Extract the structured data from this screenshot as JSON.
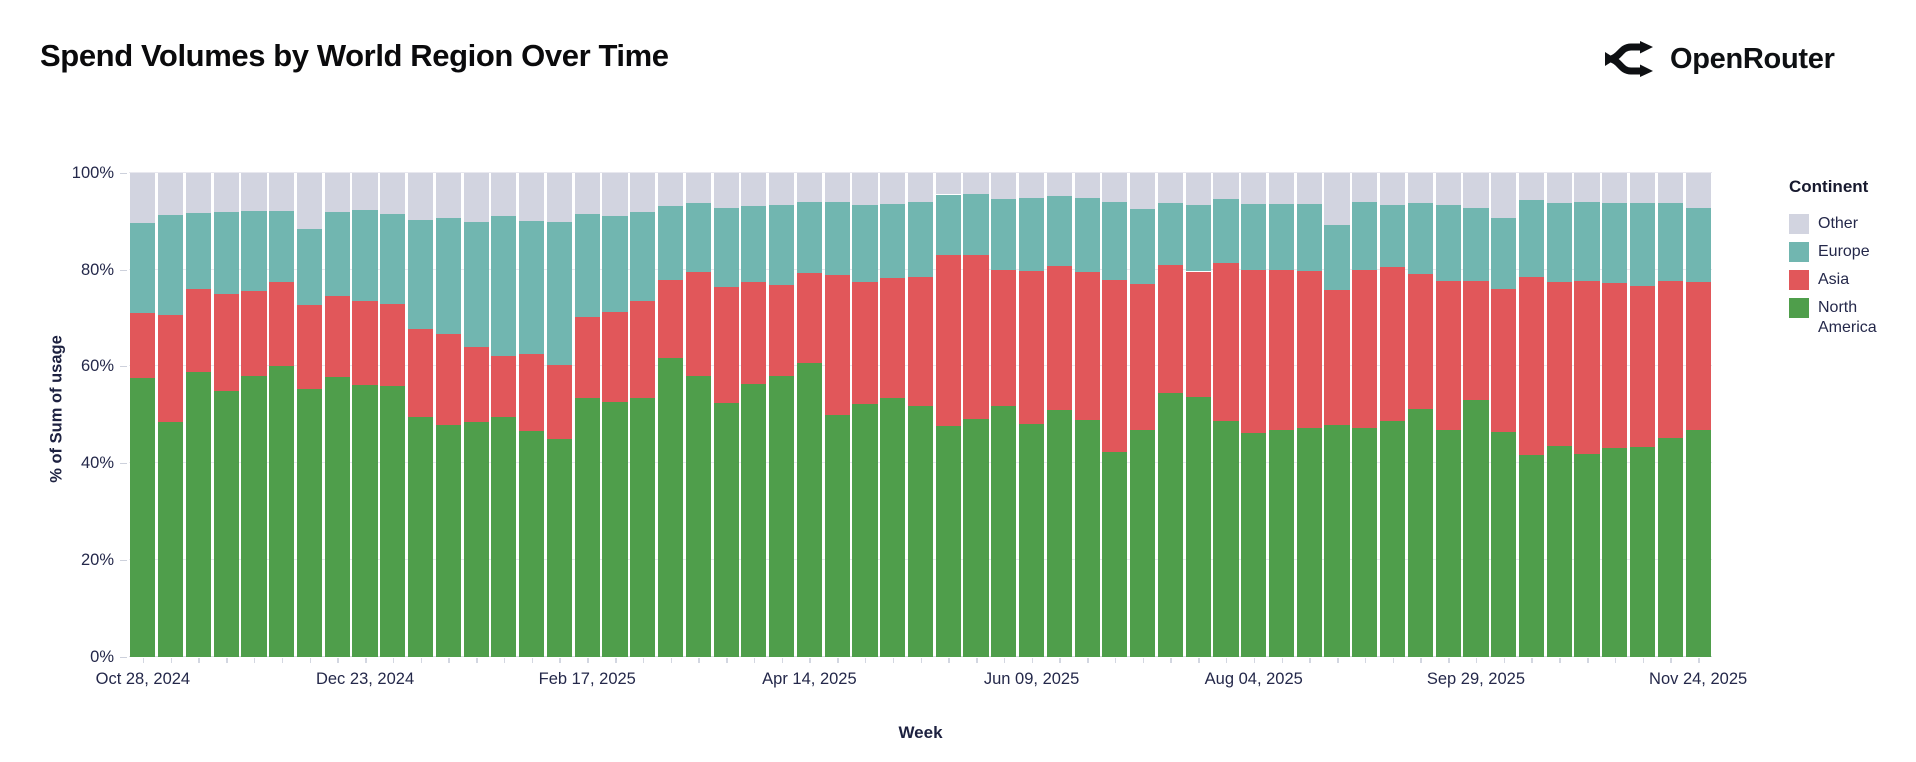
{
  "header": {
    "title": "Spend Volumes by World Region Over Time",
    "brand": "OpenRouter"
  },
  "chart_data": {
    "type": "bar",
    "subtype": "100pct-stacked-weekly",
    "title": "Spend Volumes by World Region Over Time",
    "xlabel": "Week",
    "ylabel": "% of Sum of usage",
    "ylim": [
      0,
      100
    ],
    "grid": "horizontal",
    "legend_position": "right",
    "legend_title": "Continent",
    "y_ticks": [
      {
        "value": 0,
        "label": "0%"
      },
      {
        "value": 20,
        "label": "20%"
      },
      {
        "value": 40,
        "label": "40%"
      },
      {
        "value": 60,
        "label": "60%"
      },
      {
        "value": 80,
        "label": "80%"
      },
      {
        "value": 100,
        "label": "100%"
      }
    ],
    "x_tick_every": 8,
    "x_tick_labels": [
      "Oct 28, 2024",
      "Dec 23, 2024",
      "Feb 17, 2025",
      "Apr 14, 2025",
      "Jun 09, 2025",
      "Aug 04, 2025",
      "Sep 29, 2025",
      "Nov 24, 2025"
    ],
    "series": [
      {
        "key": "north_america",
        "name": "North America",
        "color": "#4F9E4B"
      },
      {
        "key": "asia",
        "name": "Asia",
        "color": "#E1575A"
      },
      {
        "key": "europe",
        "name": "Europe",
        "color": "#71B6B0"
      },
      {
        "key": "other",
        "name": "Other",
        "color": "#D2D4E0"
      }
    ],
    "weeks": [
      {
        "week": "Oct 28, 2024",
        "north_america": 57.7,
        "asia": 13.3,
        "europe": 18.7,
        "other": 10.3
      },
      {
        "week": "Nov 04, 2024",
        "north_america": 48.6,
        "asia": 22.1,
        "europe": 20.5,
        "other": 8.8
      },
      {
        "week": "Nov 11, 2024",
        "north_america": 58.8,
        "asia": 17.2,
        "europe": 15.7,
        "other": 8.3
      },
      {
        "week": "Nov 18, 2024",
        "north_america": 55.0,
        "asia": 20.0,
        "europe": 16.9,
        "other": 8.1
      },
      {
        "week": "Nov 25, 2024",
        "north_america": 58.0,
        "asia": 17.6,
        "europe": 16.4,
        "other": 8.0
      },
      {
        "week": "Dec 02, 2024",
        "north_america": 60.0,
        "asia": 17.4,
        "europe": 14.7,
        "other": 7.9
      },
      {
        "week": "Dec 09, 2024",
        "north_america": 55.3,
        "asia": 17.3,
        "europe": 15.8,
        "other": 11.6
      },
      {
        "week": "Dec 16, 2024",
        "north_america": 57.9,
        "asia": 16.6,
        "europe": 17.4,
        "other": 8.1
      },
      {
        "week": "Dec 23, 2024",
        "north_america": 56.2,
        "asia": 17.4,
        "europe": 18.7,
        "other": 7.7
      },
      {
        "week": "Dec 30, 2024",
        "north_america": 56.0,
        "asia": 16.8,
        "europe": 18.6,
        "other": 8.6
      },
      {
        "week": "Jan 06, 2025",
        "north_america": 49.6,
        "asia": 18.1,
        "europe": 22.5,
        "other": 9.8
      },
      {
        "week": "Jan 13, 2025",
        "north_america": 47.8,
        "asia": 18.8,
        "europe": 24.1,
        "other": 9.3
      },
      {
        "week": "Jan 20, 2025",
        "north_america": 48.6,
        "asia": 15.4,
        "europe": 25.9,
        "other": 10.1
      },
      {
        "week": "Jan 27, 2025",
        "north_america": 49.5,
        "asia": 12.6,
        "europe": 29.0,
        "other": 8.9
      },
      {
        "week": "Feb 03, 2025",
        "north_america": 46.7,
        "asia": 15.8,
        "europe": 27.5,
        "other": 10.0
      },
      {
        "week": "Feb 10, 2025",
        "north_america": 45.0,
        "asia": 15.2,
        "europe": 29.6,
        "other": 10.2
      },
      {
        "week": "Feb 17, 2025",
        "north_america": 53.5,
        "asia": 16.8,
        "europe": 21.2,
        "other": 8.5
      },
      {
        "week": "Feb 24, 2025",
        "north_america": 52.7,
        "asia": 18.6,
        "europe": 19.8,
        "other": 8.9
      },
      {
        "week": "Mar 03, 2025",
        "north_america": 53.4,
        "asia": 20.1,
        "europe": 18.4,
        "other": 8.1
      },
      {
        "week": "Mar 10, 2025",
        "north_america": 61.8,
        "asia": 16.0,
        "europe": 15.4,
        "other": 6.8
      },
      {
        "week": "Mar 17, 2025",
        "north_america": 58.0,
        "asia": 21.4,
        "europe": 14.4,
        "other": 6.2
      },
      {
        "week": "Mar 24, 2025",
        "north_america": 52.5,
        "asia": 24.0,
        "europe": 16.3,
        "other": 7.2
      },
      {
        "week": "Mar 31, 2025",
        "north_america": 56.4,
        "asia": 21.0,
        "europe": 15.7,
        "other": 6.9
      },
      {
        "week": "Apr 07, 2025",
        "north_america": 58.0,
        "asia": 18.8,
        "europe": 16.5,
        "other": 6.7
      },
      {
        "week": "Apr 14, 2025",
        "north_america": 60.8,
        "asia": 18.4,
        "europe": 14.8,
        "other": 6.0
      },
      {
        "week": "Apr 21, 2025",
        "north_america": 49.9,
        "asia": 29.0,
        "europe": 15.0,
        "other": 6.1
      },
      {
        "week": "Apr 28, 2025",
        "north_america": 52.2,
        "asia": 25.2,
        "europe": 15.9,
        "other": 6.7
      },
      {
        "week": "May 05, 2025",
        "north_america": 53.4,
        "asia": 24.9,
        "europe": 15.2,
        "other": 6.5
      },
      {
        "week": "May 12, 2025",
        "north_america": 51.9,
        "asia": 26.6,
        "europe": 15.5,
        "other": 6.0
      },
      {
        "week": "May 19, 2025",
        "north_america": 47.6,
        "asia": 35.5,
        "europe": 12.4,
        "other": 4.5
      },
      {
        "week": "May 26, 2025",
        "north_america": 49.1,
        "asia": 33.9,
        "europe": 12.5,
        "other": 4.5
      },
      {
        "week": "Jun 02, 2025",
        "north_america": 51.9,
        "asia": 28.0,
        "europe": 14.6,
        "other": 5.5
      },
      {
        "week": "Jun 09, 2025",
        "north_america": 48.2,
        "asia": 31.6,
        "europe": 14.9,
        "other": 5.3
      },
      {
        "week": "Jun 16, 2025",
        "north_america": 51.1,
        "asia": 29.6,
        "europe": 14.4,
        "other": 4.9
      },
      {
        "week": "Jun 23, 2025",
        "north_america": 48.9,
        "asia": 30.5,
        "europe": 15.3,
        "other": 5.3
      },
      {
        "week": "Jun 30, 2025",
        "north_america": 42.3,
        "asia": 35.6,
        "europe": 16.0,
        "other": 6.1
      },
      {
        "week": "Jul 07, 2025",
        "north_america": 46.9,
        "asia": 30.1,
        "europe": 15.6,
        "other": 7.4
      },
      {
        "week": "Jul 14, 2025",
        "north_america": 54.5,
        "asia": 26.4,
        "europe": 12.8,
        "other": 6.3
      },
      {
        "week": "Jul 21, 2025",
        "north_america": 53.6,
        "asia": 26.0,
        "europe": 13.7,
        "other": 6.7
      },
      {
        "week": "Jul 28, 2025",
        "north_america": 48.7,
        "asia": 32.6,
        "europe": 13.3,
        "other": 5.4
      },
      {
        "week": "Aug 04, 2025",
        "north_america": 46.2,
        "asia": 33.7,
        "europe": 13.6,
        "other": 6.5
      },
      {
        "week": "Aug 11, 2025",
        "north_america": 46.9,
        "asia": 33.1,
        "europe": 13.6,
        "other": 6.4
      },
      {
        "week": "Aug 18, 2025",
        "north_america": 47.2,
        "asia": 32.6,
        "europe": 13.7,
        "other": 6.5
      },
      {
        "week": "Aug 25, 2025",
        "north_america": 47.8,
        "asia": 28.0,
        "europe": 13.5,
        "other": 10.7
      },
      {
        "week": "Sep 01, 2025",
        "north_america": 47.2,
        "asia": 32.7,
        "europe": 14.0,
        "other": 6.1
      },
      {
        "week": "Sep 08, 2025",
        "north_america": 48.7,
        "asia": 31.9,
        "europe": 12.8,
        "other": 6.6
      },
      {
        "week": "Sep 15, 2025",
        "north_america": 51.3,
        "asia": 27.8,
        "europe": 14.7,
        "other": 6.2
      },
      {
        "week": "Sep 22, 2025",
        "north_america": 46.9,
        "asia": 30.8,
        "europe": 15.6,
        "other": 6.7
      },
      {
        "week": "Sep 29, 2025",
        "north_america": 53.1,
        "asia": 24.6,
        "europe": 15.1,
        "other": 7.2
      },
      {
        "week": "Oct 06, 2025",
        "north_america": 46.5,
        "asia": 29.5,
        "europe": 14.7,
        "other": 9.3
      },
      {
        "week": "Oct 13, 2025",
        "north_america": 41.8,
        "asia": 36.7,
        "europe": 15.9,
        "other": 5.6
      },
      {
        "week": "Oct 20, 2025",
        "north_america": 43.6,
        "asia": 33.9,
        "europe": 16.2,
        "other": 6.3
      },
      {
        "week": "Oct 27, 2025",
        "north_america": 42.0,
        "asia": 35.6,
        "europe": 16.3,
        "other": 6.1
      },
      {
        "week": "Nov 03, 2025",
        "north_america": 43.2,
        "asia": 34.1,
        "europe": 16.4,
        "other": 6.3
      },
      {
        "week": "Nov 10, 2025",
        "north_america": 43.4,
        "asia": 33.3,
        "europe": 17.1,
        "other": 6.2
      },
      {
        "week": "Nov 17, 2025",
        "north_america": 45.3,
        "asia": 32.3,
        "europe": 16.1,
        "other": 6.3
      },
      {
        "week": "Nov 24, 2025",
        "north_america": 46.9,
        "asia": 30.6,
        "europe": 15.3,
        "other": 7.2
      }
    ]
  },
  "legend": {
    "title": "Continent",
    "items": [
      {
        "label": "Other",
        "color": "#D2D4E0"
      },
      {
        "label": "Europe",
        "color": "#71B6B0"
      },
      {
        "label": "Asia",
        "color": "#E1575A"
      },
      {
        "label": "North America",
        "color": "#4F9E4B"
      }
    ]
  }
}
